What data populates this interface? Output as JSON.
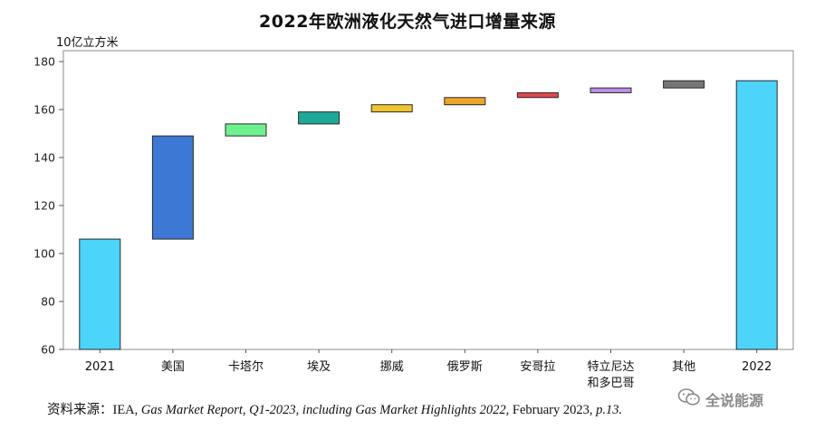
{
  "chart_data": {
    "type": "bar",
    "subtype": "waterfall",
    "title": "2022年欧洲液化天然气进口增量来源",
    "ylabel": "10亿立方米",
    "ylim": [
      60,
      180
    ],
    "yticks": [
      60,
      80,
      100,
      120,
      140,
      160,
      180
    ],
    "grid": false,
    "legend": "none",
    "bars": [
      {
        "label": [
          "2021"
        ],
        "start": 60,
        "end": 106,
        "kind": "total",
        "color": "#4dd4fb"
      },
      {
        "label": [
          "美国"
        ],
        "start": 106,
        "end": 149,
        "kind": "delta",
        "color": "#3d78d4"
      },
      {
        "label": [
          "卡塔尔"
        ],
        "start": 149,
        "end": 154,
        "kind": "delta",
        "color": "#6ef08f"
      },
      {
        "label": [
          "埃及"
        ],
        "start": 154,
        "end": 159,
        "kind": "delta",
        "color": "#1fa898"
      },
      {
        "label": [
          "挪威"
        ],
        "start": 159,
        "end": 162,
        "kind": "delta",
        "color": "#efc530"
      },
      {
        "label": [
          "俄罗斯"
        ],
        "start": 162,
        "end": 165,
        "kind": "delta",
        "color": "#eba62a"
      },
      {
        "label": [
          "安哥拉"
        ],
        "start": 165,
        "end": 167,
        "kind": "delta",
        "color": "#e0474c"
      },
      {
        "label": [
          "特立尼达",
          "和多巴哥"
        ],
        "start": 167,
        "end": 169,
        "kind": "delta",
        "color": "#bd8fea"
      },
      {
        "label": [
          "其他"
        ],
        "start": 169,
        "end": 172,
        "kind": "delta",
        "color": "#767676"
      },
      {
        "label": [
          "2022"
        ],
        "start": 60,
        "end": 172,
        "kind": "total",
        "color": "#4dd4fb"
      }
    ]
  },
  "source": {
    "prefix": "资料来源：IEA, ",
    "report": "Gas Market Report, Q1-2023, including Gas Market Highlights 2022,",
    "date": " February 2023, ",
    "page": "p.13."
  },
  "watermark": {
    "icon": "wechat-icon",
    "text": "全说能源"
  }
}
